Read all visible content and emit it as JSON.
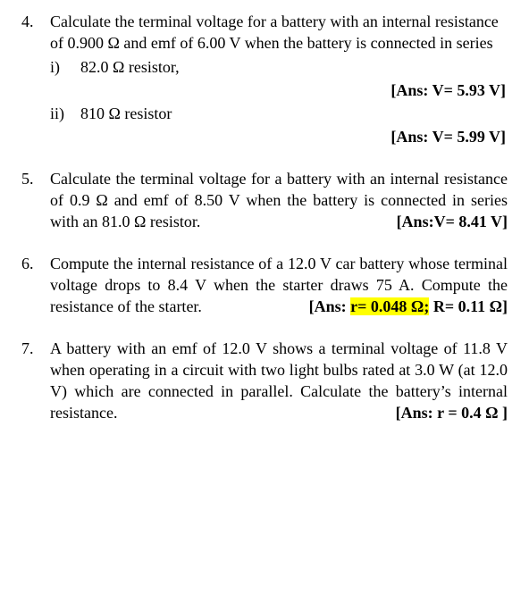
{
  "problems": [
    {
      "number": "4.",
      "text": "Calculate the terminal voltage for a battery with an internal resistance of 0.900 Ω and emf of 6.00 V when the battery is connected in series",
      "subs": [
        {
          "num": "i)",
          "text": "82.0 Ω resistor,",
          "answer": "[Ans: V= 5.93 V]"
        },
        {
          "num": "ii)",
          "text": "810 Ω resistor",
          "answer": "[Ans: V= 5.99 V]"
        }
      ]
    },
    {
      "number": "5.",
      "text_pre": "Calculate the terminal voltage for a battery with an internal resistance of 0.9 Ω and emf of 8.50 V when the battery is connected in series with an 81.0 Ω resistor.",
      "answer_inline": "[Ans:V= 8.41 V]"
    },
    {
      "number": "6.",
      "text_pre": "Compute the internal resistance of a 12.0 V car battery whose terminal voltage drops to 8.4 V when the starter draws 75 A. Compute the resistance of the starter.",
      "answer_prefix": "[Ans: ",
      "answer_hl": "r= 0.048 Ω;",
      "answer_suffix": " R= 0.11 Ω]"
    },
    {
      "number": "7.",
      "text_pre": "A battery with an emf of 12.0 V shows a terminal voltage of 11.8 V when operating in a circuit with two light bulbs rated at 3.0 W (at 12.0 V) which are connected in parallel. Calculate the battery’s internal resistance.",
      "answer_inline": "[Ans: r = 0.4 Ω ]"
    }
  ]
}
